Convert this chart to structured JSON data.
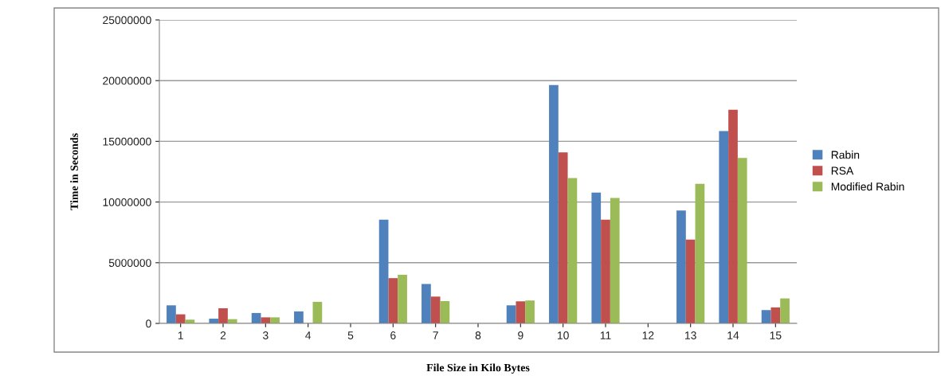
{
  "chart_data": {
    "type": "bar",
    "xlabel": "File Size in Kilo Bytes",
    "ylabel": "Time in Seconds",
    "categories": [
      "1",
      "2",
      "3",
      "4",
      "5",
      "6",
      "7",
      "8",
      "9",
      "10",
      "11",
      "12",
      "13",
      "14",
      "15"
    ],
    "series": [
      {
        "name": "Rabin",
        "color": "#4f81bd",
        "values": [
          1490000,
          390000,
          860000,
          990000,
          0,
          8550000,
          3250000,
          0,
          1490000,
          19630000,
          10780000,
          0,
          9300000,
          15850000,
          1100000
        ]
      },
      {
        "name": "RSA",
        "color": "#c0504d",
        "values": [
          750000,
          1250000,
          500000,
          0,
          0,
          3730000,
          2210000,
          0,
          1820000,
          14090000,
          8550000,
          0,
          6900000,
          17600000,
          1320000
        ]
      },
      {
        "name": "Modified Rabin",
        "color": "#9bbb59",
        "values": [
          310000,
          350000,
          500000,
          1780000,
          0,
          4010000,
          1840000,
          0,
          1890000,
          11970000,
          10340000,
          0,
          11500000,
          13640000,
          2060000
        ]
      }
    ],
    "ylim": [
      0,
      25000000
    ],
    "yticks": [
      0,
      5000000,
      10000000,
      15000000,
      20000000,
      25000000
    ],
    "grid": "y",
    "legend": "right"
  }
}
